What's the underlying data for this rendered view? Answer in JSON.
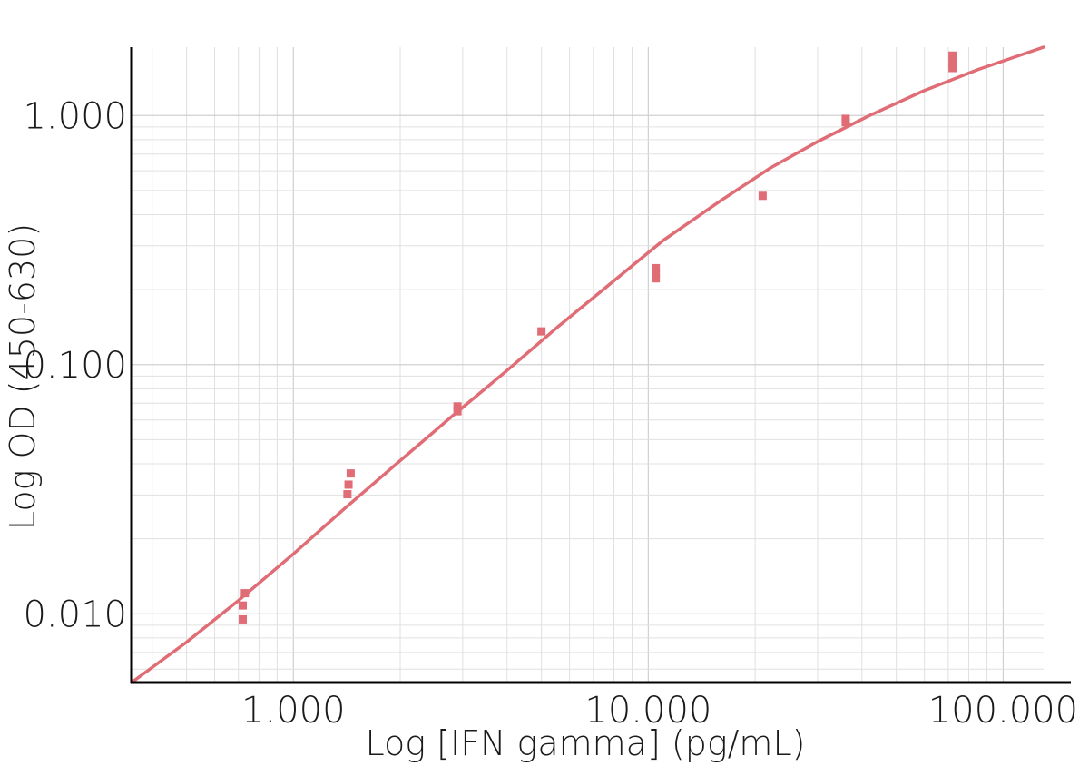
{
  "chart_data": {
    "type": "scatter",
    "title": "",
    "xlabel": "Log [IFN gamma] (pg/mL)",
    "ylabel": "Log OD (450-630)",
    "x_scale": "log",
    "y_scale": "log",
    "xlim": [
      0.35,
      130
    ],
    "ylim": [
      0.0053,
      1.88
    ],
    "x_ticks": [
      {
        "value": 1,
        "label": "1.000"
      },
      {
        "value": 10,
        "label": "10.000"
      },
      {
        "value": 100,
        "label": "100.000"
      }
    ],
    "y_ticks": [
      {
        "value": 0.01,
        "label": "0.010"
      },
      {
        "value": 0.1,
        "label": "0.100"
      },
      {
        "value": 1,
        "label": "1.000"
      }
    ],
    "grid": true,
    "color": "#e06c75",
    "series": [
      {
        "kind": "replicates",
        "points": [
          {
            "x": 0.73,
            "y": 0.0121
          },
          {
            "x": 0.72,
            "y": 0.0108
          },
          {
            "x": 0.72,
            "y": 0.0095
          },
          {
            "x": 1.45,
            "y": 0.0366
          },
          {
            "x": 1.43,
            "y": 0.033
          },
          {
            "x": 1.42,
            "y": 0.0302
          },
          {
            "x": 2.9,
            "y": 0.068
          },
          {
            "x": 2.9,
            "y": 0.065
          },
          {
            "x": 5.0,
            "y": 0.136
          },
          {
            "x": 10.5,
            "y": 0.244
          },
          {
            "x": 10.5,
            "y": 0.233
          },
          {
            "x": 10.5,
            "y": 0.222
          },
          {
            "x": 21.0,
            "y": 0.476
          },
          {
            "x": 36.0,
            "y": 0.94
          },
          {
            "x": 36.0,
            "y": 0.97
          },
          {
            "x": 72.0,
            "y": 1.74
          },
          {
            "x": 72.0,
            "y": 1.63
          },
          {
            "x": 72.0,
            "y": 1.55
          }
        ]
      },
      {
        "kind": "fit_curve",
        "x": [
          0.35,
          0.5,
          0.7,
          1.0,
          1.4,
          2.0,
          2.8,
          4.0,
          5.6,
          8.0,
          11.0,
          16.0,
          22.0,
          30.0,
          42.0,
          60.0,
          85.0,
          130.0
        ],
        "y": [
          0.0053,
          0.0077,
          0.0113,
          0.0174,
          0.0266,
          0.0412,
          0.0621,
          0.0948,
          0.143,
          0.217,
          0.315,
          0.455,
          0.614,
          0.786,
          1.0,
          1.26,
          1.53,
          1.88
        ]
      }
    ]
  }
}
